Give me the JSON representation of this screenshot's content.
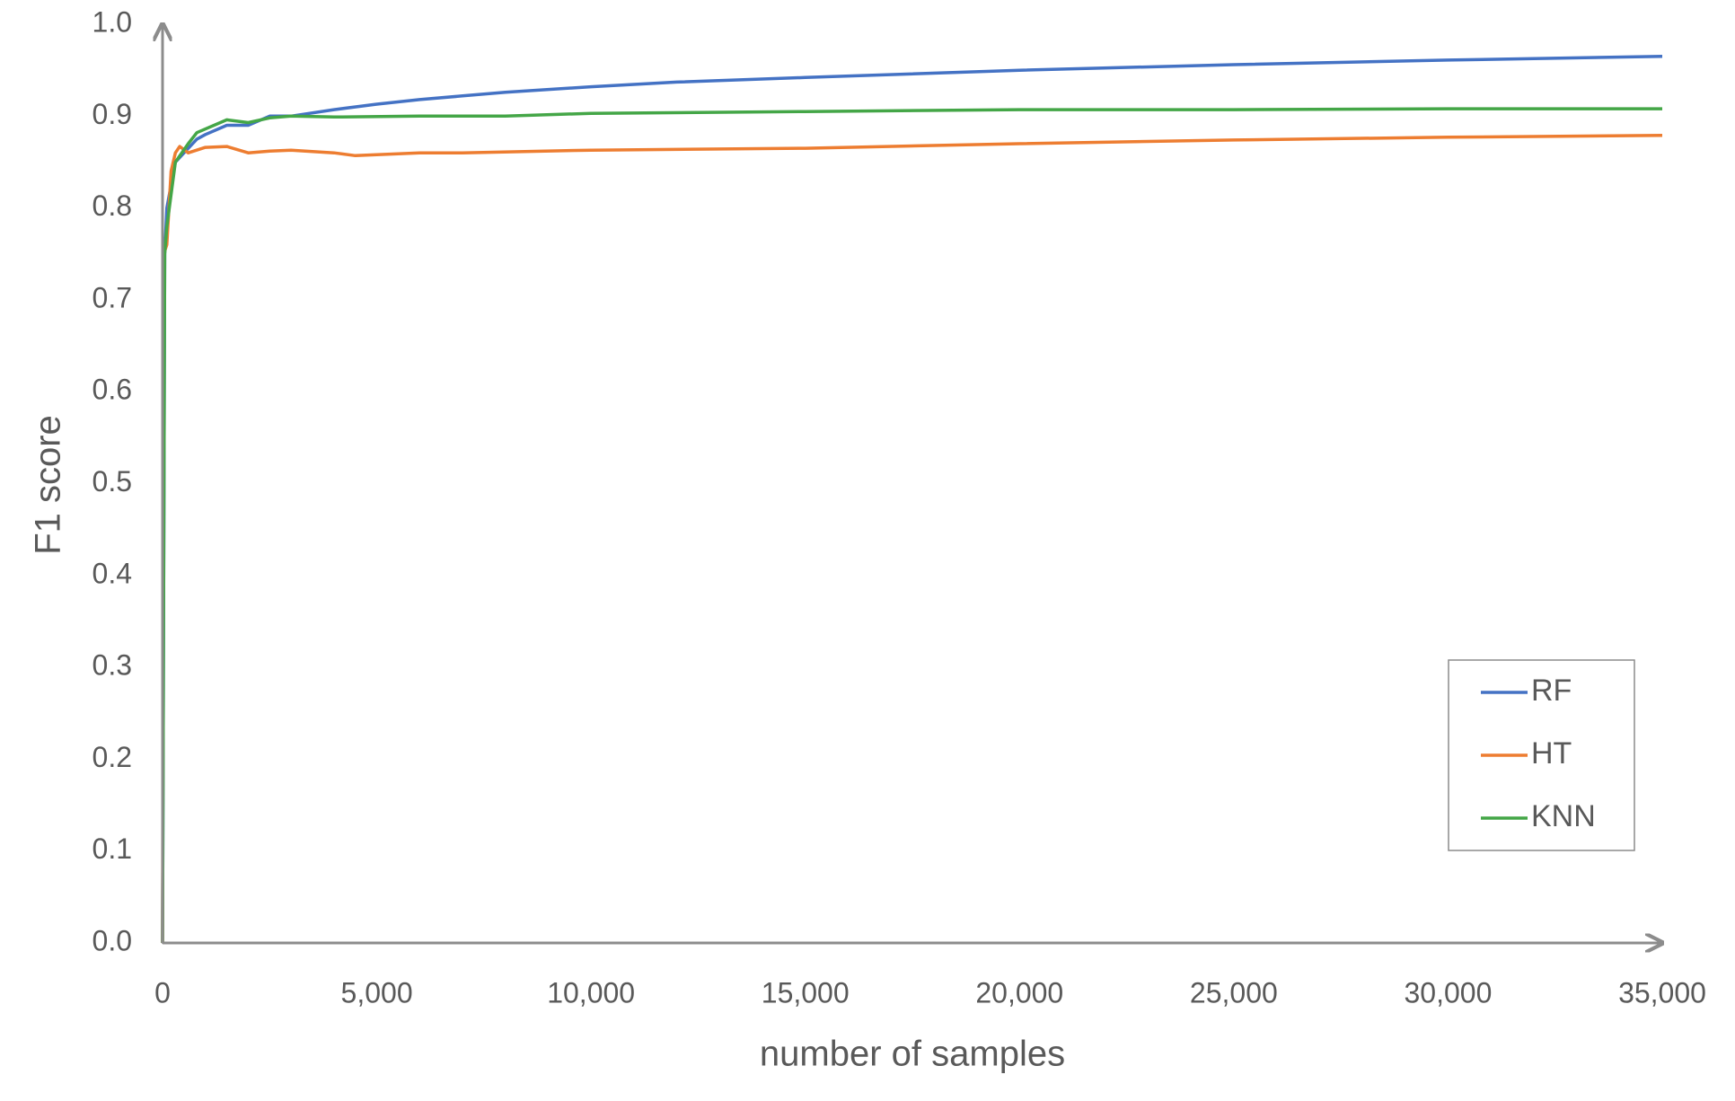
{
  "chart_data": {
    "type": "line",
    "xlabel": "number of samples",
    "ylabel": "F1 score",
    "xlim": [
      0,
      35000
    ],
    "ylim": [
      0,
      1
    ],
    "xticks": [
      0,
      {
        "value": 5000,
        "label": "5,000"
      },
      {
        "value": 10000,
        "label": "10,000"
      },
      {
        "value": 15000,
        "label": "15,000"
      },
      {
        "value": 20000,
        "label": "20,000"
      },
      {
        "value": 25000,
        "label": "25,000"
      },
      {
        "value": 30000,
        "label": "30,000"
      },
      {
        "value": 35000,
        "label": "35,000"
      }
    ],
    "yticks": [
      {
        "value": 0,
        "label": "0.0"
      },
      0.1,
      0.2,
      0.3,
      0.4,
      0.5,
      0.6,
      0.7,
      0.8,
      0.9,
      {
        "value": 1,
        "label": "1.0"
      }
    ],
    "grid": false,
    "legend": "lower right",
    "series": [
      {
        "name": "RF",
        "color": "#4472c4",
        "x": [
          0,
          50,
          100,
          300,
          500,
          800,
          1000,
          1500,
          2000,
          2500,
          3000,
          4000,
          5000,
          6000,
          7000,
          8000,
          10000,
          12000,
          15000,
          20000,
          25000,
          30000,
          35000
        ],
        "values": [
          0,
          0.75,
          0.8,
          0.85,
          0.86,
          0.875,
          0.88,
          0.89,
          0.89,
          0.9,
          0.9,
          0.907,
          0.913,
          0.918,
          0.922,
          0.926,
          0.932,
          0.937,
          0.942,
          0.95,
          0.956,
          0.961,
          0.965
        ]
      },
      {
        "name": "HT",
        "color": "#ed7d31",
        "x": [
          0,
          30,
          100,
          200,
          300,
          400,
          600,
          1000,
          1500,
          2000,
          2500,
          3000,
          4000,
          4500,
          6000,
          7000,
          10000,
          15000,
          20000,
          25000,
          30000,
          35000
        ],
        "values": [
          0,
          0.75,
          0.76,
          0.84,
          0.86,
          0.867,
          0.86,
          0.866,
          0.867,
          0.86,
          0.862,
          0.863,
          0.86,
          0.857,
          0.86,
          0.86,
          0.863,
          0.865,
          0.87,
          0.874,
          0.877,
          0.879
        ]
      },
      {
        "name": "KNN",
        "color": "#44a647",
        "x": [
          0,
          50,
          100,
          300,
          600,
          800,
          1500,
          2000,
          2500,
          3000,
          4000,
          6000,
          8000,
          10000,
          15000,
          20000,
          25000,
          30000,
          35000
        ],
        "values": [
          0,
          0.75,
          0.78,
          0.85,
          0.87,
          0.882,
          0.896,
          0.893,
          0.898,
          0.9,
          0.899,
          0.9,
          0.9,
          0.903,
          0.905,
          0.907,
          0.907,
          0.908,
          0.908
        ]
      }
    ]
  }
}
